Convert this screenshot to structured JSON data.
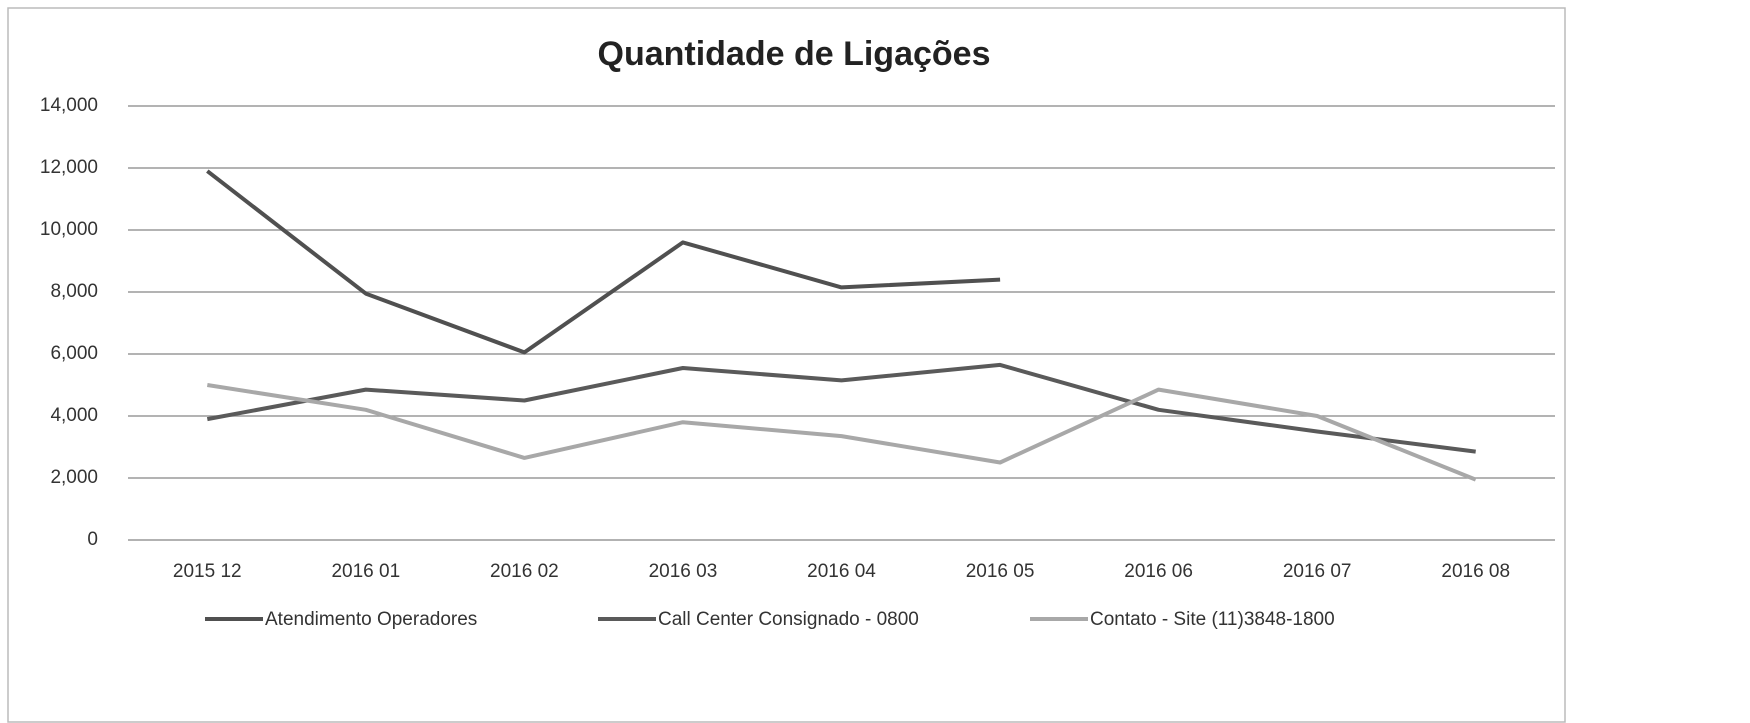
{
  "chart_data": {
    "type": "line",
    "title": "Quantidade de Ligações",
    "categories": [
      "2015 12",
      "2016 01",
      "2016 02",
      "2016 03",
      "2016 04",
      "2016 05",
      "2016 06",
      "2016 07",
      "2016 08"
    ],
    "series": [
      {
        "name": "Atendimento Operadores",
        "color": "#505050",
        "values": [
          11900,
          7950,
          6050,
          9600,
          8150,
          8400,
          null,
          null,
          null
        ]
      },
      {
        "name": "Call Center Consignado - 0800",
        "color": "#5a5a5a",
        "values": [
          3900,
          4850,
          4500,
          5550,
          5150,
          5650,
          4200,
          3500,
          2850
        ]
      },
      {
        "name": "Contato - Site (11)3848-1800",
        "color": "#a8a8a8",
        "values": [
          5000,
          4200,
          2650,
          3800,
          3350,
          2500,
          4850,
          4000,
          1950
        ]
      }
    ],
    "ylim": [
      0,
      14000
    ],
    "yticks": [
      0,
      {
        "value": 2000,
        "label": "2,000"
      },
      {
        "value": 4000,
        "label": "4,000"
      },
      {
        "value": 6000,
        "label": "6,000"
      },
      {
        "value": 8000,
        "label": "8,000"
      },
      {
        "value": 10000,
        "label": "10,000"
      },
      {
        "value": 12000,
        "label": "12,000"
      },
      {
        "value": 14000,
        "label": "14,000"
      }
    ],
    "grid": true,
    "legend": "bottom"
  }
}
